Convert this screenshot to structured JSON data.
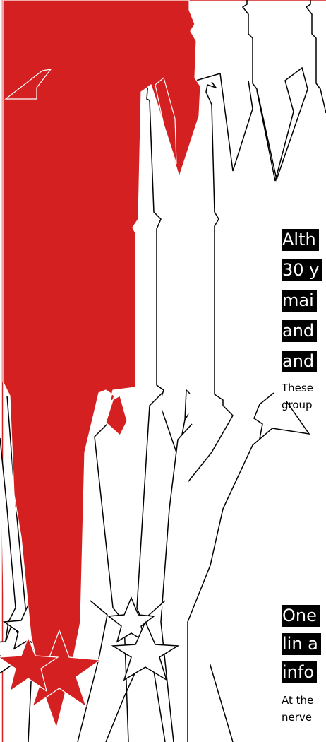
{
  "colors": {
    "accent": "#d42020",
    "outline": "#000000",
    "text_highlight_bg": "#000000",
    "text_highlight_fg": "#ffffff",
    "background": "#ffffff"
  },
  "story": {
    "section1": {
      "heading_lines": [
        "Alth",
        "30 y",
        "mai",
        "and",
        "and"
      ],
      "body_lines": [
        "These",
        "group"
      ]
    },
    "section2": {
      "heading_lines": [
        "One",
        "lin a",
        "info"
      ],
      "body_lines": [
        "At the",
        "nerve"
      ]
    }
  }
}
